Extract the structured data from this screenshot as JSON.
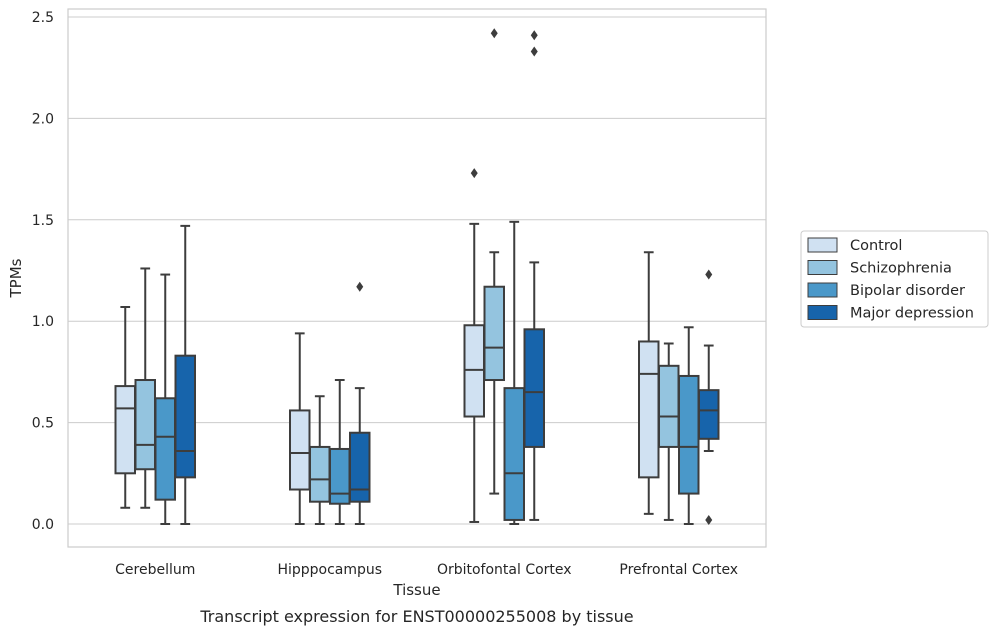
{
  "caption": "Transcript expression for ENST00000255008 by tissue",
  "chart_data": {
    "type": "box",
    "xlabel": "Tissue",
    "ylabel": "TPMs",
    "ylim": [
      -0.12,
      2.55
    ],
    "yticks": [
      0.0,
      0.5,
      1.0,
      1.5,
      2.0,
      2.5
    ],
    "ytick_labels": [
      "0.0",
      "0.5",
      "1.0",
      "1.5",
      "2.0",
      "2.5"
    ],
    "grid": "horizontal",
    "legend_placement": "center-right, outside plot",
    "categories": [
      "Cerebellum",
      "Hipppocampus",
      "Orbitofontal Cortex",
      "Prefrontal Cortex"
    ],
    "series": [
      {
        "name": "Control",
        "color": "#d0e1f2",
        "boxes": [
          {
            "whisker_low": 0.08,
            "q1": 0.25,
            "median": 0.57,
            "q3": 0.68,
            "whisker_high": 1.07,
            "outliers": []
          },
          {
            "whisker_low": 0.0,
            "q1": 0.17,
            "median": 0.35,
            "q3": 0.56,
            "whisker_high": 0.94,
            "outliers": []
          },
          {
            "whisker_low": 0.01,
            "q1": 0.53,
            "median": 0.76,
            "q3": 0.98,
            "whisker_high": 1.48,
            "outliers": [
              1.73
            ]
          },
          {
            "whisker_low": 0.05,
            "q1": 0.23,
            "median": 0.74,
            "q3": 0.9,
            "whisker_high": 1.34,
            "outliers": []
          }
        ]
      },
      {
        "name": "Schizophrenia",
        "color": "#94c4df",
        "boxes": [
          {
            "whisker_low": 0.08,
            "q1": 0.27,
            "median": 0.39,
            "q3": 0.71,
            "whisker_high": 1.26,
            "outliers": []
          },
          {
            "whisker_low": 0.0,
            "q1": 0.11,
            "median": 0.22,
            "q3": 0.38,
            "whisker_high": 0.63,
            "outliers": []
          },
          {
            "whisker_low": 0.15,
            "q1": 0.71,
            "median": 0.87,
            "q3": 1.17,
            "whisker_high": 1.34,
            "outliers": [
              2.42
            ]
          },
          {
            "whisker_low": 0.02,
            "q1": 0.38,
            "median": 0.53,
            "q3": 0.78,
            "whisker_high": 0.89,
            "outliers": []
          }
        ]
      },
      {
        "name": "Bipolar disorder",
        "color": "#4a98c9",
        "boxes": [
          {
            "whisker_low": 0.0,
            "q1": 0.12,
            "median": 0.43,
            "q3": 0.62,
            "whisker_high": 1.23,
            "outliers": []
          },
          {
            "whisker_low": 0.0,
            "q1": 0.1,
            "median": 0.15,
            "q3": 0.37,
            "whisker_high": 0.71,
            "outliers": []
          },
          {
            "whisker_low": 0.0,
            "q1": 0.02,
            "median": 0.25,
            "q3": 0.67,
            "whisker_high": 1.49,
            "outliers": []
          },
          {
            "whisker_low": 0.0,
            "q1": 0.15,
            "median": 0.38,
            "q3": 0.73,
            "whisker_high": 0.97,
            "outliers": []
          }
        ]
      },
      {
        "name": "Major depression",
        "color": "#1764ab",
        "boxes": [
          {
            "whisker_low": 0.0,
            "q1": 0.23,
            "median": 0.36,
            "q3": 0.83,
            "whisker_high": 1.47,
            "outliers": []
          },
          {
            "whisker_low": 0.0,
            "q1": 0.11,
            "median": 0.17,
            "q3": 0.45,
            "whisker_high": 0.67,
            "outliers": [
              1.17
            ]
          },
          {
            "whisker_low": 0.02,
            "q1": 0.38,
            "median": 0.65,
            "q3": 0.96,
            "whisker_high": 1.29,
            "outliers": [
              2.33,
              2.41
            ]
          },
          {
            "whisker_low": 0.36,
            "q1": 0.42,
            "median": 0.56,
            "q3": 0.66,
            "whisker_high": 0.88,
            "outliers": [
              0.02,
              1.23
            ]
          }
        ]
      }
    ]
  }
}
